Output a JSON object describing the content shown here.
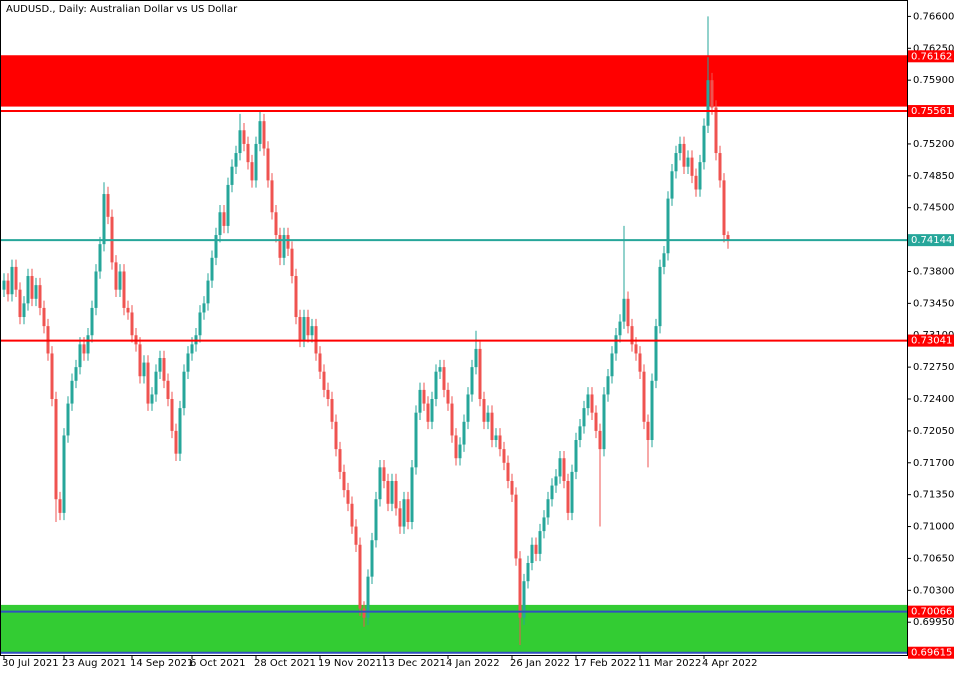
{
  "chart_data": {
    "type": "candlestick",
    "title": "AUDUSD., Daily:  Australian Dollar vs US Dollar",
    "categories": [
      "30 Jul 2021",
      null,
      null,
      null,
      null,
      null,
      null,
      null,
      null,
      null,
      null,
      null,
      null,
      null,
      null,
      "23 Aug 2021",
      null,
      null,
      null,
      null,
      null,
      null,
      null,
      null,
      null,
      null,
      null,
      null,
      null,
      null,
      null,
      null,
      "14 Sep 2021",
      null,
      null,
      null,
      null,
      null,
      null,
      null,
      null,
      null,
      null,
      null,
      null,
      null,
      null,
      "6 Oct 2021",
      null,
      null,
      null,
      null,
      null,
      null,
      null,
      null,
      null,
      null,
      null,
      null,
      null,
      null,
      null,
      "28 Oct 2021",
      null,
      null,
      null,
      null,
      null,
      null,
      null,
      null,
      null,
      null,
      null,
      null,
      null,
      null,
      null,
      "19 Nov 2021",
      null,
      null,
      null,
      null,
      null,
      null,
      null,
      null,
      null,
      null,
      null,
      null,
      null,
      null,
      null,
      "13 Dec 2021",
      null,
      null,
      null,
      null,
      null,
      null,
      null,
      null,
      null,
      null,
      null,
      null,
      null,
      null,
      null,
      "4 Jan 2022",
      null,
      null,
      null,
      null,
      null,
      null,
      null,
      null,
      null,
      null,
      null,
      null,
      null,
      null,
      null,
      "26 Jan 2022",
      null,
      null,
      null,
      null,
      null,
      null,
      null,
      null,
      null,
      null,
      null,
      null,
      null,
      null,
      null,
      "17 Feb 2022",
      null,
      null,
      null,
      null,
      null,
      null,
      null,
      null,
      null,
      null,
      null,
      null,
      null,
      null,
      null,
      "11 Mar 2022",
      null,
      null,
      null,
      null,
      null,
      null,
      null,
      null,
      null,
      null,
      null,
      null,
      null,
      null,
      null,
      "4 Apr 2022",
      null,
      null,
      null,
      null,
      null,
      null
    ],
    "open": [
      0.736,
      0.737,
      0.7355,
      0.7385,
      0.736,
      0.733,
      0.7345,
      0.7375,
      0.735,
      0.7365,
      0.734,
      0.732,
      0.729,
      0.724,
      0.713,
      0.7115,
      0.72,
      0.7235,
      0.726,
      0.7275,
      0.73,
      0.729,
      0.731,
      0.734,
      0.738,
      0.741,
      0.7465,
      0.744,
      0.739,
      0.736,
      0.738,
      0.734,
      0.7335,
      0.731,
      0.73,
      0.7265,
      0.728,
      0.7235,
      0.7245,
      0.727,
      0.7285,
      0.726,
      0.724,
      0.7205,
      0.718,
      0.723,
      0.727,
      0.729,
      0.73,
      0.731,
      0.7335,
      0.7345,
      0.737,
      0.7395,
      0.742,
      0.7445,
      0.743,
      0.7475,
      0.7495,
      0.751,
      0.7535,
      0.752,
      0.75,
      0.748,
      0.752,
      0.7545,
      0.7515,
      0.748,
      0.7445,
      0.742,
      0.7395,
      0.742,
      0.7405,
      0.7375,
      0.733,
      0.7305,
      0.733,
      0.731,
      0.732,
      0.729,
      0.727,
      0.725,
      0.724,
      0.7215,
      0.7185,
      0.716,
      0.714,
      0.7125,
      0.71,
      0.708,
      0.701,
      0.7,
      0.7045,
      0.7085,
      0.713,
      0.7165,
      0.715,
      0.7125,
      0.715,
      0.712,
      0.71,
      0.713,
      0.7105,
      0.7165,
      0.7225,
      0.725,
      0.7235,
      0.7215,
      0.724,
      0.727,
      0.7275,
      0.725,
      0.7235,
      0.72,
      0.7175,
      0.719,
      0.7215,
      0.7245,
      0.7275,
      0.7295,
      0.724,
      0.7215,
      0.7225,
      0.7195,
      0.72,
      0.7185,
      0.717,
      0.715,
      0.7135,
      0.7065,
      0.7,
      0.704,
      0.706,
      0.708,
      0.707,
      0.7095,
      0.711,
      0.713,
      0.7145,
      0.7155,
      0.7175,
      0.715,
      0.7115,
      0.716,
      0.7195,
      0.721,
      0.723,
      0.7245,
      0.7225,
      0.7205,
      0.7185,
      0.7245,
      0.7265,
      0.729,
      0.731,
      0.7325,
      0.735,
      0.732,
      0.73,
      0.729,
      0.727,
      0.7215,
      0.7195,
      0.726,
      0.732,
      0.7385,
      0.74,
      0.746,
      0.749,
      0.751,
      0.752,
      0.7495,
      0.7505,
      0.7485,
      0.747,
      0.75,
      0.754,
      0.759,
      0.756,
      0.751,
      0.748,
      0.742
    ],
    "high": [
      0.7378,
      0.7378,
      0.7393,
      0.7393,
      0.7368,
      0.7353,
      0.7383,
      0.7383,
      0.7373,
      0.7373,
      0.7348,
      0.7328,
      0.7298,
      0.7248,
      0.7138,
      0.7208,
      0.7243,
      0.7268,
      0.7283,
      0.7308,
      0.7308,
      0.7318,
      0.7348,
      0.7388,
      0.7418,
      0.7478,
      0.7473,
      0.7448,
      0.7398,
      0.7388,
      0.7388,
      0.7348,
      0.7343,
      0.7318,
      0.7308,
      0.7288,
      0.7288,
      0.7253,
      0.7278,
      0.7293,
      0.7293,
      0.7268,
      0.7248,
      0.7213,
      0.7238,
      0.7278,
      0.7298,
      0.7308,
      0.7318,
      0.7343,
      0.7353,
      0.7378,
      0.7403,
      0.7428,
      0.7453,
      0.7453,
      0.7483,
      0.7503,
      0.7518,
      0.7553,
      0.7543,
      0.7528,
      0.7508,
      0.7528,
      0.7556,
      0.7553,
      0.7523,
      0.7488,
      0.7453,
      0.7428,
      0.7428,
      0.7428,
      0.7413,
      0.7383,
      0.7338,
      0.7338,
      0.7338,
      0.7328,
      0.7328,
      0.7298,
      0.7278,
      0.7258,
      0.7248,
      0.7223,
      0.7193,
      0.7168,
      0.7148,
      0.7133,
      0.7108,
      0.7088,
      0.7018,
      0.7053,
      0.7093,
      0.7138,
      0.7173,
      0.7173,
      0.7158,
      0.7158,
      0.7158,
      0.7128,
      0.7138,
      0.7138,
      0.7173,
      0.7233,
      0.7258,
      0.7258,
      0.7243,
      0.7248,
      0.7278,
      0.7283,
      0.7283,
      0.7258,
      0.7243,
      0.7208,
      0.7198,
      0.7223,
      0.7253,
      0.7283,
      0.7315,
      0.7303,
      0.7248,
      0.7233,
      0.7233,
      0.7208,
      0.7208,
      0.7193,
      0.7178,
      0.7158,
      0.7143,
      0.7073,
      0.7048,
      0.7068,
      0.7088,
      0.7088,
      0.7103,
      0.7118,
      0.7138,
      0.7153,
      0.7163,
      0.7183,
      0.7183,
      0.7158,
      0.7168,
      0.7203,
      0.7218,
      0.7238,
      0.7253,
      0.7253,
      0.7233,
      0.7213,
      0.7253,
      0.7273,
      0.7298,
      0.7318,
      0.7333,
      0.743,
      0.7358,
      0.7328,
      0.7308,
      0.7298,
      0.7278,
      0.7223,
      0.7268,
      0.7328,
      0.7393,
      0.7408,
      0.7468,
      0.7498,
      0.7518,
      0.7528,
      0.7528,
      0.7513,
      0.7513,
      0.7493,
      0.7508,
      0.7548,
      0.766,
      0.7598,
      0.7568,
      0.7518,
      0.7488,
      0.7424
    ],
    "low": [
      0.7352,
      0.7347,
      0.7347,
      0.7352,
      0.7322,
      0.7322,
      0.7337,
      0.7342,
      0.7342,
      0.7332,
      0.7312,
      0.7282,
      0.7232,
      0.7105,
      0.7107,
      0.7107,
      0.7192,
      0.7227,
      0.7252,
      0.7267,
      0.7282,
      0.7282,
      0.7302,
      0.7332,
      0.7372,
      0.7402,
      0.7432,
      0.7382,
      0.7352,
      0.7352,
      0.7332,
      0.7327,
      0.7302,
      0.7292,
      0.7257,
      0.7257,
      0.7227,
      0.7227,
      0.7237,
      0.7262,
      0.7252,
      0.7232,
      0.7197,
      0.7172,
      0.7172,
      0.7222,
      0.7262,
      0.7282,
      0.7292,
      0.7302,
      0.7327,
      0.7337,
      0.7362,
      0.7387,
      0.7412,
      0.7422,
      0.7422,
      0.7467,
      0.7487,
      0.7502,
      0.7512,
      0.7492,
      0.7472,
      0.7472,
      0.7512,
      0.7507,
      0.7472,
      0.7437,
      0.7412,
      0.7387,
      0.7387,
      0.7397,
      0.7367,
      0.7322,
      0.7297,
      0.7297,
      0.7302,
      0.7302,
      0.7282,
      0.7262,
      0.7242,
      0.7232,
      0.7207,
      0.7177,
      0.7152,
      0.7132,
      0.7117,
      0.7092,
      0.7072,
      0.7002,
      0.699,
      0.6992,
      0.7037,
      0.7077,
      0.7122,
      0.7142,
      0.7117,
      0.7117,
      0.7112,
      0.7092,
      0.7092,
      0.7097,
      0.7097,
      0.7157,
      0.7217,
      0.7227,
      0.7207,
      0.7207,
      0.7232,
      0.7262,
      0.7242,
      0.7227,
      0.7192,
      0.7167,
      0.7167,
      0.7182,
      0.7207,
      0.7237,
      0.7267,
      0.7232,
      0.7207,
      0.7207,
      0.7187,
      0.7187,
      0.7177,
      0.7162,
      0.7142,
      0.7127,
      0.7057,
      0.697,
      0.6992,
      0.7032,
      0.7052,
      0.7062,
      0.7062,
      0.7087,
      0.7102,
      0.7122,
      0.7137,
      0.7147,
      0.7142,
      0.7107,
      0.7107,
      0.7152,
      0.7187,
      0.7202,
      0.7222,
      0.7217,
      0.7197,
      0.71,
      0.7177,
      0.7237,
      0.7257,
      0.7282,
      0.7302,
      0.7317,
      0.7312,
      0.7292,
      0.7282,
      0.7262,
      0.7207,
      0.7165,
      0.7187,
      0.7252,
      0.7312,
      0.7377,
      0.7392,
      0.7452,
      0.7482,
      0.7502,
      0.7487,
      0.7487,
      0.7477,
      0.7462,
      0.7462,
      0.7492,
      0.7532,
      0.7552,
      0.7502,
      0.7472,
      0.7412,
      0.7405
    ],
    "close": [
      0.737,
      0.7355,
      0.7385,
      0.736,
      0.733,
      0.7345,
      0.7375,
      0.735,
      0.7365,
      0.734,
      0.732,
      0.729,
      0.724,
      0.713,
      0.7115,
      0.72,
      0.7235,
      0.726,
      0.7275,
      0.73,
      0.729,
      0.731,
      0.734,
      0.738,
      0.741,
      0.7465,
      0.744,
      0.739,
      0.736,
      0.738,
      0.734,
      0.7335,
      0.731,
      0.73,
      0.7265,
      0.728,
      0.7235,
      0.7245,
      0.727,
      0.7285,
      0.726,
      0.724,
      0.7205,
      0.718,
      0.723,
      0.727,
      0.729,
      0.73,
      0.731,
      0.7335,
      0.7345,
      0.737,
      0.7395,
      0.742,
      0.7445,
      0.743,
      0.7475,
      0.7495,
      0.751,
      0.7535,
      0.752,
      0.75,
      0.748,
      0.752,
      0.7545,
      0.7515,
      0.748,
      0.7445,
      0.742,
      0.7395,
      0.742,
      0.7405,
      0.7375,
      0.733,
      0.7305,
      0.733,
      0.731,
      0.732,
      0.729,
      0.727,
      0.725,
      0.724,
      0.7215,
      0.7185,
      0.716,
      0.714,
      0.7125,
      0.71,
      0.708,
      0.701,
      0.7,
      0.7045,
      0.7085,
      0.713,
      0.7165,
      0.715,
      0.7125,
      0.715,
      0.712,
      0.71,
      0.713,
      0.7105,
      0.7165,
      0.7225,
      0.725,
      0.7235,
      0.7215,
      0.724,
      0.727,
      0.7275,
      0.725,
      0.7235,
      0.72,
      0.7175,
      0.719,
      0.7215,
      0.7245,
      0.7275,
      0.7295,
      0.724,
      0.7215,
      0.7225,
      0.7195,
      0.72,
      0.7185,
      0.717,
      0.715,
      0.7135,
      0.7065,
      0.7,
      0.704,
      0.706,
      0.708,
      0.707,
      0.7095,
      0.711,
      0.713,
      0.7145,
      0.7155,
      0.7175,
      0.715,
      0.7115,
      0.716,
      0.7195,
      0.721,
      0.723,
      0.7245,
      0.7225,
      0.7205,
      0.7185,
      0.7245,
      0.7265,
      0.729,
      0.731,
      0.7325,
      0.735,
      0.732,
      0.73,
      0.729,
      0.727,
      0.7215,
      0.7195,
      0.726,
      0.732,
      0.7385,
      0.74,
      0.746,
      0.749,
      0.751,
      0.752,
      0.7495,
      0.7505,
      0.7485,
      0.747,
      0.75,
      0.754,
      0.759,
      0.756,
      0.751,
      0.748,
      0.742,
      0.7414
    ],
    "up_color": "#26a69a",
    "down_color": "#ef5350",
    "ylim": [
      0.6959,
      0.7678
    ],
    "yticks": [
      {
        "value": 0.766,
        "label": "0.76600"
      },
      {
        "value": 0.7625,
        "label": "0.76250"
      },
      {
        "value": 0.759,
        "label": "0.75900"
      },
      {
        "value": 0.752,
        "label": "0.75200"
      },
      {
        "value": 0.7485,
        "label": "0.74850"
      },
      {
        "value": 0.745,
        "label": "0.74500"
      },
      {
        "value": 0.738,
        "label": "0.73800"
      },
      {
        "value": 0.7345,
        "label": "0.73450"
      },
      {
        "value": 0.731,
        "label": "0.73100"
      },
      {
        "value": 0.7275,
        "label": "0.72750"
      },
      {
        "value": 0.724,
        "label": "0.72400"
      },
      {
        "value": 0.7205,
        "label": "0.72050"
      },
      {
        "value": 0.717,
        "label": "0.71700"
      },
      {
        "value": 0.7135,
        "label": "0.71350"
      },
      {
        "value": 0.71,
        "label": "0.71000"
      },
      {
        "value": 0.7065,
        "label": "0.70650"
      },
      {
        "value": 0.703,
        "label": "0.70300"
      },
      {
        "value": 0.6995,
        "label": "0.69950"
      }
    ],
    "zones": [
      {
        "from": 0.76162,
        "to": 0.7561,
        "color": "#ff0000"
      },
      {
        "from": 0.7014,
        "to": 0.69615,
        "color": "#33cc33"
      }
    ],
    "levels": [
      {
        "value": 0.76162,
        "color": "#ff0000",
        "label_color": "#ff0000"
      },
      {
        "value": 0.75561,
        "color": "#ff0000",
        "label_color": "#ff0000"
      },
      {
        "value": 0.74144,
        "color": "#26a69a",
        "label_color": "#26a69a"
      },
      {
        "value": 0.73041,
        "color": "#ff0000",
        "label_color": "#ff0000"
      },
      {
        "value": 0.70066,
        "color": "#3050c0",
        "label_color": "#ff0000"
      },
      {
        "value": 0.69615,
        "color": "#3050c0",
        "label_color": "#ff0000"
      }
    ]
  }
}
